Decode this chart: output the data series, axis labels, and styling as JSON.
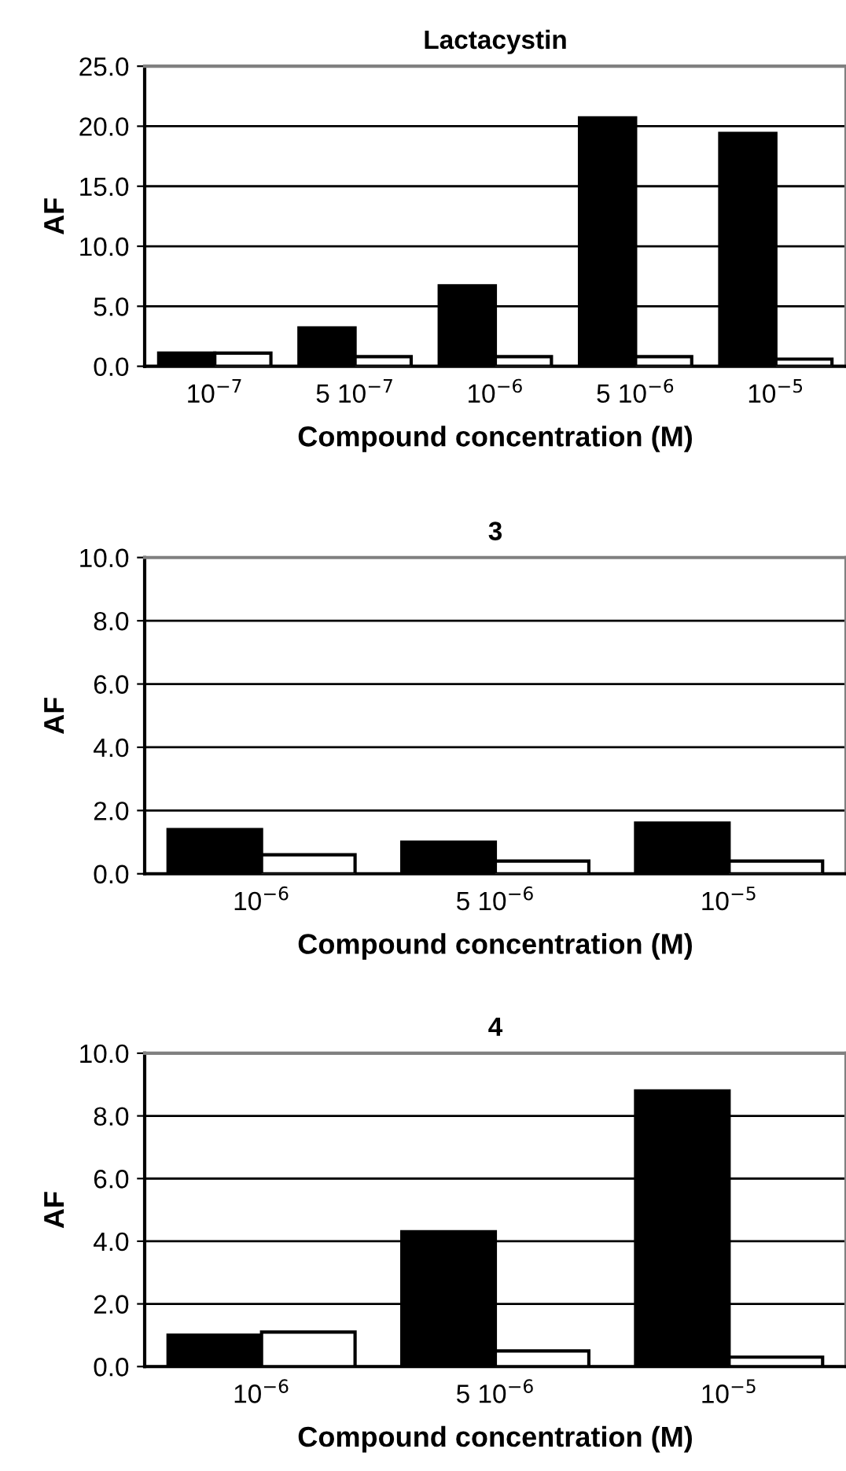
{
  "chart_data": [
    {
      "type": "bar",
      "title": "Lactacystin",
      "xlabel": "Compound concentration (M)",
      "ylabel": "AF",
      "categories": [
        "10$^{−7}$",
        "5 10$^{−7}$",
        "10$^{−6}$",
        "5 10$^{−6}$",
        "10$^{−5}$"
      ],
      "series": [
        {
          "color": "#000000",
          "values": [
            1.1,
            3.2,
            6.7,
            20.7,
            19.4
          ]
        },
        {
          "color": "#ffffff",
          "values": [
            1.1,
            0.8,
            0.8,
            0.8,
            0.6
          ]
        }
      ],
      "ylim": [
        0,
        25
      ],
      "yticks": [
        {
          "value": 0,
          "label": "0.0"
        },
        {
          "value": 5,
          "label": "5.0"
        },
        {
          "value": 10,
          "label": "10.0"
        },
        {
          "value": 15,
          "label": "15.0"
        },
        {
          "value": 20,
          "label": "20.0"
        },
        {
          "value": 25,
          "label": "25.0"
        }
      ],
      "grid": "y"
    },
    {
      "type": "bar",
      "title": "3",
      "xlabel": "Compound concentration (M)",
      "ylabel": "AF",
      "categories": [
        "10$^{−6}$",
        "5 10$^{−6}$",
        "10$^{−5}$"
      ],
      "series": [
        {
          "color": "#000000",
          "values": [
            1.4,
            1.0,
            1.6
          ]
        },
        {
          "color": "#ffffff",
          "values": [
            0.6,
            0.4,
            0.4
          ]
        }
      ],
      "ylim": [
        0,
        10
      ],
      "yticks": [
        {
          "value": 0,
          "label": "0.0"
        },
        {
          "value": 2,
          "label": "2.0"
        },
        {
          "value": 4,
          "label": "4.0"
        },
        {
          "value": 6,
          "label": "6.0"
        },
        {
          "value": 8,
          "label": "8.0"
        },
        {
          "value": 10,
          "label": "10.0"
        }
      ],
      "grid": "y"
    },
    {
      "type": "bar",
      "title": "4",
      "xlabel": "Compound concentration (M)",
      "ylabel": "AF",
      "categories": [
        "10$^{−6}$",
        "5 10$^{−6}$",
        "10$^{−5}$"
      ],
      "series": [
        {
          "color": "#000000",
          "values": [
            1.0,
            4.3,
            8.8
          ]
        },
        {
          "color": "#ffffff",
          "values": [
            1.1,
            0.5,
            0.3
          ]
        }
      ],
      "ylim": [
        0,
        10
      ],
      "yticks": [
        {
          "value": 0,
          "label": "0.0"
        },
        {
          "value": 2,
          "label": "2.0"
        },
        {
          "value": 4,
          "label": "4.0"
        },
        {
          "value": 6,
          "label": "6.0"
        },
        {
          "value": 8,
          "label": "8.0"
        },
        {
          "value": 10,
          "label": "10.0"
        }
      ],
      "grid": "y"
    }
  ]
}
